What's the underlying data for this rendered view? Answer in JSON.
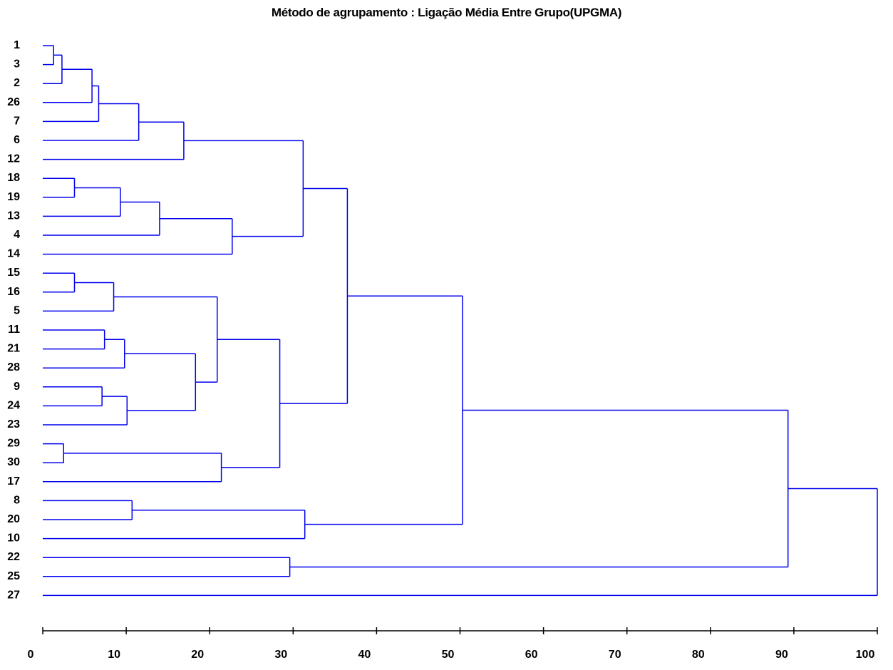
{
  "chart_data": {
    "type": "dendrogram",
    "title": "Método de agrupamento : Ligação Média Entre Grupo(UPGMA)",
    "xlim": [
      0,
      100
    ],
    "x_ticks": [
      0,
      10,
      20,
      30,
      40,
      50,
      60,
      70,
      80,
      90,
      100
    ],
    "x_tick_labels": [
      "0",
      "10",
      "20",
      "30",
      "40",
      "50",
      "60",
      "70",
      "80",
      "90",
      "100"
    ],
    "grid": false,
    "leaf_order": [
      "1",
      "3",
      "2",
      "26",
      "7",
      "6",
      "12",
      "18",
      "19",
      "13",
      "4",
      "14",
      "15",
      "16",
      "5",
      "11",
      "21",
      "28",
      "9",
      "24",
      "23",
      "29",
      "30",
      "17",
      "8",
      "20",
      "10",
      "22",
      "25",
      "27"
    ],
    "merges": [
      {
        "id": "m1",
        "left": "1",
        "right": "3",
        "height": 1.3
      },
      {
        "id": "m2",
        "left": "m1",
        "right": "2",
        "height": 2.3
      },
      {
        "id": "m3",
        "left": "m2",
        "right": "26",
        "height": 5.9
      },
      {
        "id": "m4",
        "left": "m3",
        "right": "7",
        "height": 6.7
      },
      {
        "id": "m5",
        "left": "m4",
        "right": "6",
        "height": 11.5
      },
      {
        "id": "m6",
        "left": "m5",
        "right": "12",
        "height": 16.9
      },
      {
        "id": "m7",
        "left": "18",
        "right": "19",
        "height": 3.8
      },
      {
        "id": "m8",
        "left": "m7",
        "right": "13",
        "height": 9.3
      },
      {
        "id": "m9",
        "left": "m8",
        "right": "4",
        "height": 14.0
      },
      {
        "id": "m10",
        "left": "m9",
        "right": "14",
        "height": 22.7
      },
      {
        "id": "m11",
        "left": "m6",
        "right": "m10",
        "height": 31.2
      },
      {
        "id": "m12",
        "left": "15",
        "right": "16",
        "height": 3.8
      },
      {
        "id": "m13",
        "left": "m12",
        "right": "5",
        "height": 8.5
      },
      {
        "id": "m14",
        "left": "11",
        "right": "21",
        "height": 7.4
      },
      {
        "id": "m15",
        "left": "m14",
        "right": "28",
        "height": 9.8
      },
      {
        "id": "m16",
        "left": "9",
        "right": "24",
        "height": 7.1
      },
      {
        "id": "m17",
        "left": "m16",
        "right": "23",
        "height": 10.1
      },
      {
        "id": "m18",
        "left": "m15",
        "right": "m17",
        "height": 18.3
      },
      {
        "id": "m19",
        "left": "m13",
        "right": "m18",
        "height": 20.9
      },
      {
        "id": "m20",
        "left": "29",
        "right": "30",
        "height": 2.5
      },
      {
        "id": "m21",
        "left": "m20",
        "right": "17",
        "height": 21.4
      },
      {
        "id": "m22",
        "left": "m19",
        "right": "m21",
        "height": 28.4
      },
      {
        "id": "m23",
        "left": "m11",
        "right": "m22",
        "height": 36.5
      },
      {
        "id": "m24",
        "left": "8",
        "right": "20",
        "height": 10.7
      },
      {
        "id": "m25",
        "left": "m24",
        "right": "10",
        "height": 31.4
      },
      {
        "id": "m26",
        "left": "m23",
        "right": "m25",
        "height": 50.3
      },
      {
        "id": "m27",
        "left": "22",
        "right": "25",
        "height": 29.6
      },
      {
        "id": "m28",
        "left": "m26",
        "right": "m27",
        "height": 89.3
      },
      {
        "id": "m29",
        "left": "m28",
        "right": "27",
        "height": 100.0
      }
    ],
    "colors": {
      "links": "#0000ee",
      "axis": "#000000",
      "text": "#000000"
    }
  }
}
